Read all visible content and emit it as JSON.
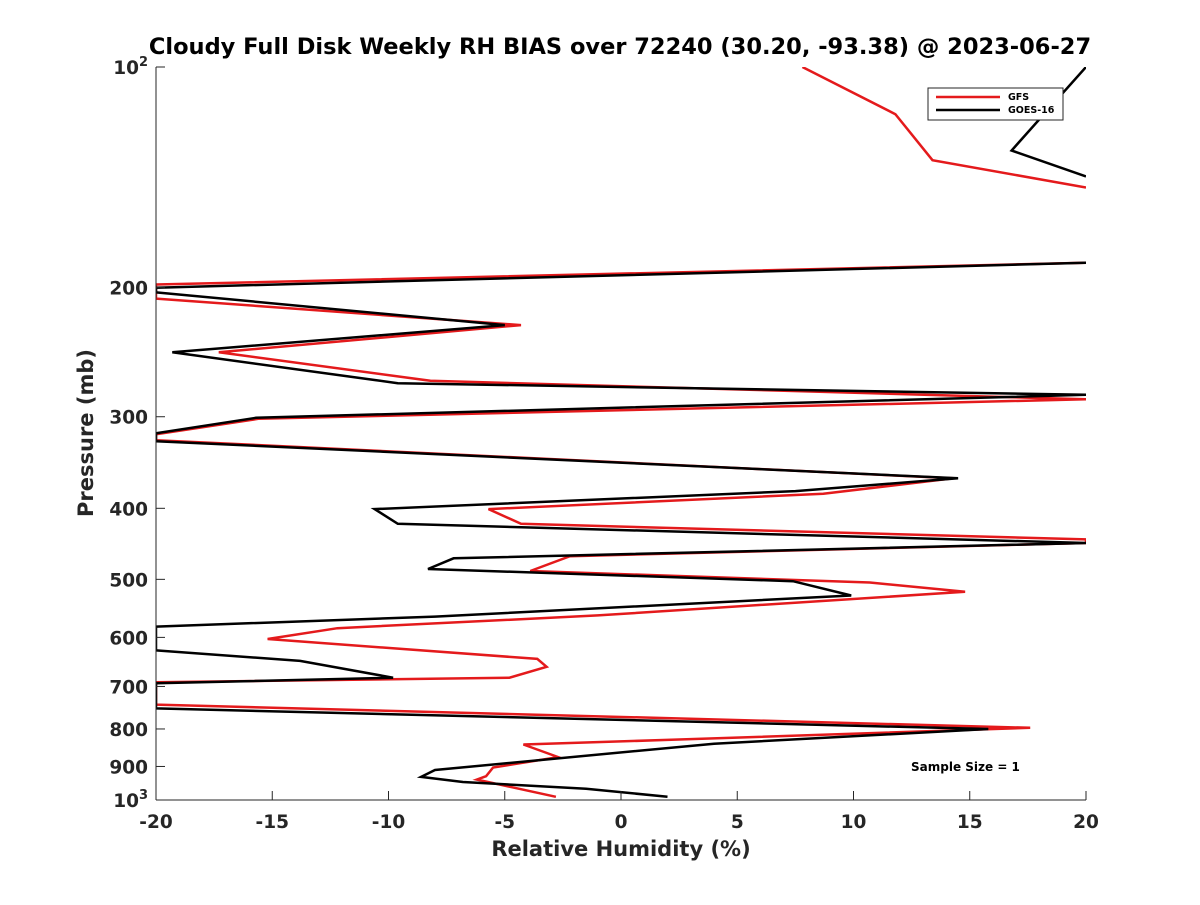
{
  "chart_data": {
    "type": "line",
    "title": "Cloudy Full Disk Weekly RH BIAS over 72240 (30.20, -93.38) @ 2023-06-27",
    "xlabel": "Relative Humidity (%)",
    "ylabel": "Pressure (mb)",
    "xlim": [
      -20,
      20
    ],
    "ylim": [
      100,
      1000
    ],
    "yscale": "log",
    "yreversed": true,
    "x_ticks": [
      -20,
      -15,
      -10,
      -5,
      0,
      5,
      10,
      15,
      20
    ],
    "y_ticks": [
      {
        "value": 100,
        "label": "10",
        "sup": "2"
      },
      {
        "value": 200,
        "label": "200",
        "sup": ""
      },
      {
        "value": 300,
        "label": "300",
        "sup": ""
      },
      {
        "value": 400,
        "label": "400",
        "sup": ""
      },
      {
        "value": 500,
        "label": "500",
        "sup": ""
      },
      {
        "value": 600,
        "label": "600",
        "sup": ""
      },
      {
        "value": 700,
        "label": "700",
        "sup": ""
      },
      {
        "value": 800,
        "label": "800",
        "sup": ""
      },
      {
        "value": 900,
        "label": "900",
        "sup": ""
      },
      {
        "value": 1000,
        "label": "10",
        "sup": "3"
      }
    ],
    "grid": false,
    "legend_position": "top-right",
    "annotation": "Sample Size = 1",
    "series": [
      {
        "name": "GFS",
        "color": "#e41a1c",
        "points": [
          [
            7.8,
            100
          ],
          [
            11.8,
            116
          ],
          [
            13.4,
            134
          ],
          [
            20,
            146
          ],
          [
            null,
            null
          ],
          [
            20,
            185
          ],
          [
            -20,
            198
          ],
          [
            -20,
            207
          ],
          [
            -4.3,
            225
          ],
          [
            -17.3,
            245
          ],
          [
            -8.2,
            268
          ],
          [
            20,
            284
          ],
          [
            -15.6,
            302
          ],
          [
            -20,
            317
          ],
          [
            -20,
            323
          ],
          [
            14.3,
            364
          ],
          [
            8.7,
            382
          ],
          [
            -5.7,
            401
          ],
          [
            -4.3,
            420
          ],
          [
            20,
            441
          ],
          [
            20,
            446
          ],
          [
            -2.2,
            465
          ],
          [
            -3.9,
            487
          ],
          [
            10.7,
            505
          ],
          [
            14.8,
            520
          ],
          [
            -1,
            560
          ],
          [
            -12.2,
            583
          ],
          [
            -15.2,
            603
          ],
          [
            -3.6,
            642
          ],
          [
            -3.2,
            658
          ],
          [
            -4.8,
            681
          ],
          [
            -20,
            691
          ],
          [
            -20,
            741
          ],
          [
            17.6,
            797
          ],
          [
            2,
            828
          ],
          [
            -4.2,
            840
          ],
          [
            -2.7,
            874
          ],
          [
            -5.5,
            903
          ],
          [
            -5.8,
            928
          ],
          [
            -6.2,
            938
          ],
          [
            -4.4,
            965
          ],
          [
            -2.8,
            990
          ]
        ]
      },
      {
        "name": "GOES-16",
        "color": "#000000",
        "points": [
          [
            20,
            100
          ],
          [
            16.8,
            130
          ],
          [
            20,
            141
          ],
          [
            null,
            null
          ],
          [
            20,
            185
          ],
          [
            -20,
            200
          ],
          [
            -20,
            203
          ],
          [
            -5,
            225
          ],
          [
            -19.3,
            245
          ],
          [
            -9.6,
            270
          ],
          [
            20,
            280
          ],
          [
            -15.7,
            301
          ],
          [
            -20,
            316
          ],
          [
            -20,
            324
          ],
          [
            14.5,
            364
          ],
          [
            7.5,
            379
          ],
          [
            -10.6,
            401
          ],
          [
            -9.6,
            420
          ],
          [
            20,
            446
          ],
          [
            -7.2,
            468
          ],
          [
            -8.3,
            484
          ],
          [
            7.4,
            503
          ],
          [
            9.9,
            526
          ],
          [
            -8,
            562
          ],
          [
            -20,
            580
          ],
          [
            -20,
            625
          ],
          [
            -13.8,
            646
          ],
          [
            -9.8,
            681
          ],
          [
            -20,
            693
          ],
          [
            -20,
            750
          ],
          [
            15.8,
            800
          ],
          [
            4,
            838
          ],
          [
            -8,
            910
          ],
          [
            -8.6,
            930
          ],
          [
            -6.8,
            945
          ],
          [
            -1.5,
            965
          ],
          [
            2,
            990
          ]
        ]
      }
    ]
  }
}
